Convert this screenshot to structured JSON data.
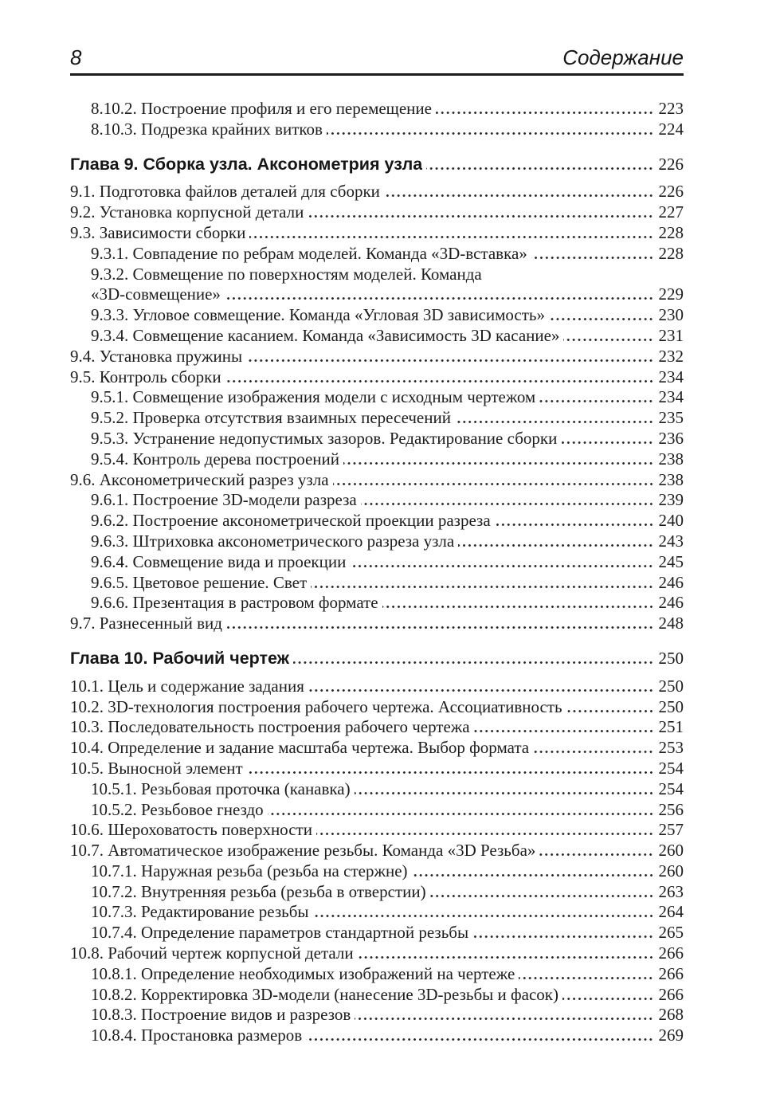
{
  "header": {
    "page_number": "8",
    "title": "Содержание"
  },
  "toc": {
    "entries": [
      {
        "level": 1,
        "chapter": false,
        "text": "8.10.2. Построение профиля и его перемещение",
        "page": "223"
      },
      {
        "level": 1,
        "chapter": false,
        "text": "8.10.3. Подрезка крайних витков",
        "page": "224"
      },
      {
        "level": 0,
        "chapter": true,
        "text": "Глава 9. Сборка узла. Аксонометрия узла",
        "page": "226"
      },
      {
        "level": 0,
        "chapter": false,
        "text": "9.1. Подготовка файлов деталей для сборки",
        "page": "226"
      },
      {
        "level": 0,
        "chapter": false,
        "text": "9.2. Установка корпусной детали",
        "page": "227"
      },
      {
        "level": 0,
        "chapter": false,
        "text": "9.3. Зависимости сборки",
        "page": "228"
      },
      {
        "level": 1,
        "chapter": false,
        "text": "9.3.1. Совпадение по ребрам моделей. Команда «3D-вставка»",
        "page": "228"
      },
      {
        "level": 1,
        "chapter": false,
        "text": "9.3.2. Совмещение по поверхностям моделей. Команда",
        "page": ""
      },
      {
        "level": 1,
        "chapter": false,
        "text": "«3D-совмещение»",
        "page": "229"
      },
      {
        "level": 1,
        "chapter": false,
        "text": "9.3.3. Угловое совмещение. Команда «Угловая 3D зависимость»",
        "page": "230"
      },
      {
        "level": 1,
        "chapter": false,
        "text": "9.3.4. Совмещение касанием. Команда «Зависимость 3D касание»",
        "page": "231"
      },
      {
        "level": 0,
        "chapter": false,
        "text": "9.4. Установка пружины",
        "page": "232"
      },
      {
        "level": 0,
        "chapter": false,
        "text": "9.5. Контроль сборки",
        "page": "234"
      },
      {
        "level": 1,
        "chapter": false,
        "text": "9.5.1. Совмещение изображения модели с исходным чертежом",
        "page": "234"
      },
      {
        "level": 1,
        "chapter": false,
        "text": "9.5.2. Проверка отсутствия взаимных пересечений",
        "page": "235"
      },
      {
        "level": 1,
        "chapter": false,
        "text": "9.5.3. Устранение недопустимых зазоров. Редактирование сборки",
        "page": "236"
      },
      {
        "level": 1,
        "chapter": false,
        "text": "9.5.4. Контроль дерева построений",
        "page": "238"
      },
      {
        "level": 0,
        "chapter": false,
        "text": "9.6. Аксонометрический разрез узла",
        "page": "238"
      },
      {
        "level": 1,
        "chapter": false,
        "text": "9.6.1. Построение 3D-модели разреза",
        "page": "239"
      },
      {
        "level": 1,
        "chapter": false,
        "text": "9.6.2. Построение аксонометрической проекции разреза",
        "page": "240"
      },
      {
        "level": 1,
        "chapter": false,
        "text": "9.6.3. Штриховка аксонометрического разреза узла",
        "page": "243"
      },
      {
        "level": 1,
        "chapter": false,
        "text": "9.6.4. Совмещение вида и проекции",
        "page": "245"
      },
      {
        "level": 1,
        "chapter": false,
        "text": "9.6.5. Цветовое решение. Свет",
        "page": "246"
      },
      {
        "level": 1,
        "chapter": false,
        "text": "9.6.6. Презентация в растровом формате",
        "page": "246"
      },
      {
        "level": 0,
        "chapter": false,
        "text": "9.7. Разнесенный вид",
        "page": "248"
      },
      {
        "level": 0,
        "chapter": true,
        "text": "Глава 10. Рабочий чертеж",
        "page": "250"
      },
      {
        "level": 0,
        "chapter": false,
        "text": "10.1. Цель и содержание задания",
        "page": "250"
      },
      {
        "level": 0,
        "chapter": false,
        "text": "10.2. 3D-технология построения рабочего чертежа. Ассоциативность",
        "page": "250"
      },
      {
        "level": 0,
        "chapter": false,
        "text": "10.3. Последовательность построения рабочего чертежа",
        "page": "251"
      },
      {
        "level": 0,
        "chapter": false,
        "text": "10.4. Определение и задание масштаба чертежа. Выбор формата",
        "page": "253"
      },
      {
        "level": 0,
        "chapter": false,
        "text": "10.5. Выносной элемент",
        "page": "254"
      },
      {
        "level": 1,
        "chapter": false,
        "text": "10.5.1. Резьбовая проточка (канавка)",
        "page": "254"
      },
      {
        "level": 1,
        "chapter": false,
        "text": "10.5.2. Резьбовое гнездо",
        "page": "256"
      },
      {
        "level": 0,
        "chapter": false,
        "text": "10.6. Шероховатость поверхности",
        "page": "257"
      },
      {
        "level": 0,
        "chapter": false,
        "text": "10.7. Автоматическое изображение резьбы. Команда «3D Резьба»",
        "page": "260"
      },
      {
        "level": 1,
        "chapter": false,
        "text": "10.7.1. Наружная резьба (резьба на стержне)",
        "page": "260"
      },
      {
        "level": 1,
        "chapter": false,
        "text": "10.7.2. Внутренняя резьба (резьба в отверстии)",
        "page": "263"
      },
      {
        "level": 1,
        "chapter": false,
        "text": "10.7.3. Редактирование резьбы",
        "page": "264"
      },
      {
        "level": 1,
        "chapter": false,
        "text": "10.7.4. Определение параметров стандартной резьбы",
        "page": "265"
      },
      {
        "level": 0,
        "chapter": false,
        "text": "10.8. Рабочий чертеж корпусной детали",
        "page": "266"
      },
      {
        "level": 1,
        "chapter": false,
        "text": "10.8.1. Определение необходимых изображений на чертеже",
        "page": "266"
      },
      {
        "level": 1,
        "chapter": false,
        "text": "10.8.2. Корректировка 3D-модели (нанесение 3D-резьбы и фасок)",
        "page": "266"
      },
      {
        "level": 1,
        "chapter": false,
        "text": "10.8.3. Построение видов и разрезов",
        "page": "268"
      },
      {
        "level": 1,
        "chapter": false,
        "text": "10.8.4. Простановка размеров",
        "page": "269"
      }
    ]
  }
}
